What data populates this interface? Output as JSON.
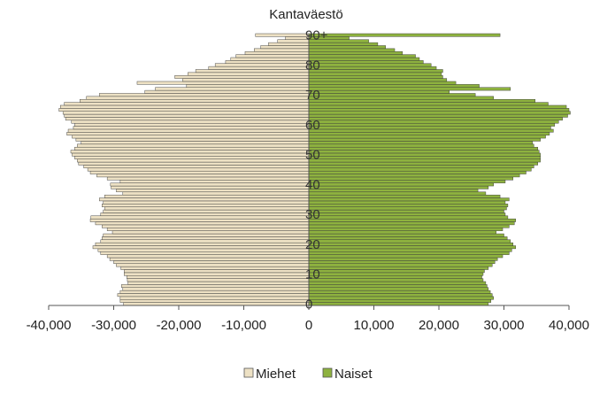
{
  "chart_data": {
    "type": "bar",
    "orientation": "horizontal-pyramid",
    "title": "Kantaväestö",
    "x_tick_labels": [
      "-40,000",
      "-30,000",
      "-20,000",
      "-10,000",
      "0",
      "10,000",
      "20,000",
      "30,000",
      "40,000"
    ],
    "x_ticks": [
      -40000,
      -30000,
      -20000,
      -10000,
      0,
      10000,
      20000,
      30000,
      40000
    ],
    "xlim": [
      -40000,
      40000
    ],
    "age_labels": [
      "0",
      "10",
      "20",
      "30",
      "40",
      "50",
      "60",
      "70",
      "80",
      "90+"
    ],
    "age_label_positions": [
      0,
      10,
      20,
      30,
      40,
      50,
      60,
      70,
      80,
      90
    ],
    "categories": [
      "0",
      "1",
      "2",
      "3",
      "4",
      "5",
      "6",
      "7",
      "8",
      "9",
      "10",
      "11",
      "12",
      "13",
      "14",
      "15",
      "16",
      "17",
      "18",
      "19",
      "20",
      "21",
      "22",
      "23",
      "24",
      "25",
      "26",
      "27",
      "28",
      "29",
      "30",
      "31",
      "32",
      "33",
      "34",
      "35",
      "36",
      "37",
      "38",
      "39",
      "40",
      "41",
      "42",
      "43",
      "44",
      "45",
      "46",
      "47",
      "48",
      "49",
      "50",
      "51",
      "52",
      "53",
      "54",
      "55",
      "56",
      "57",
      "58",
      "59",
      "60",
      "61",
      "62",
      "63",
      "64",
      "65",
      "66",
      "67",
      "68",
      "69",
      "70",
      "71",
      "72",
      "73",
      "74",
      "75",
      "76",
      "77",
      "78",
      "79",
      "80",
      "81",
      "82",
      "83",
      "84",
      "85",
      "86",
      "87",
      "88",
      "89",
      "90+"
    ],
    "grid": false,
    "legend_position": "bottom",
    "series": [
      {
        "name": "Miehet",
        "color": "#ede1c4",
        "values": [
          28500,
          29000,
          29000,
          29400,
          29000,
          28600,
          28800,
          27800,
          27900,
          28000,
          28400,
          28400,
          28900,
          29600,
          30000,
          30600,
          31000,
          32000,
          32400,
          33200,
          32800,
          32000,
          31800,
          31600,
          30200,
          31000,
          31800,
          32800,
          33600,
          33500,
          32000,
          31600,
          31400,
          31800,
          31600,
          32200,
          31400,
          28600,
          29600,
          30400,
          30500,
          29000,
          31000,
          32600,
          33600,
          34000,
          34600,
          35400,
          35600,
          36000,
          36400,
          36600,
          36000,
          35600,
          35000,
          35800,
          36400,
          37200,
          37000,
          36200,
          36000,
          36500,
          37400,
          37600,
          37800,
          38400,
          38200,
          37600,
          35200,
          34200,
          32200,
          25200,
          23600,
          18800,
          26400,
          19400,
          20600,
          18600,
          17400,
          15400,
          14400,
          12800,
          12000,
          11200,
          9800,
          8400,
          7400,
          6200,
          4800,
          3600,
          8200
        ]
      },
      {
        "name": "Naiset",
        "color": "#8eb23f",
        "values": [
          27600,
          28000,
          28400,
          28200,
          27900,
          27600,
          27400,
          27200,
          26800,
          26600,
          26800,
          27000,
          27600,
          28200,
          28600,
          29000,
          29800,
          30800,
          31200,
          31800,
          31400,
          31000,
          30500,
          30000,
          28800,
          29800,
          30800,
          31600,
          31800,
          30600,
          30200,
          30000,
          30400,
          30600,
          30200,
          30800,
          29400,
          27200,
          26000,
          27600,
          28400,
          30200,
          31400,
          32400,
          33400,
          34200,
          34600,
          35200,
          35600,
          35600,
          35600,
          35400,
          35200,
          34600,
          34400,
          35600,
          36400,
          37000,
          37600,
          37200,
          37800,
          38400,
          39000,
          39800,
          40200,
          40000,
          39600,
          36800,
          34800,
          28400,
          25600,
          21600,
          31000,
          26200,
          22600,
          21200,
          20600,
          20400,
          20600,
          19600,
          18800,
          17600,
          17000,
          16400,
          14400,
          13200,
          11800,
          10600,
          9200,
          6200,
          29400
        ]
      }
    ]
  }
}
